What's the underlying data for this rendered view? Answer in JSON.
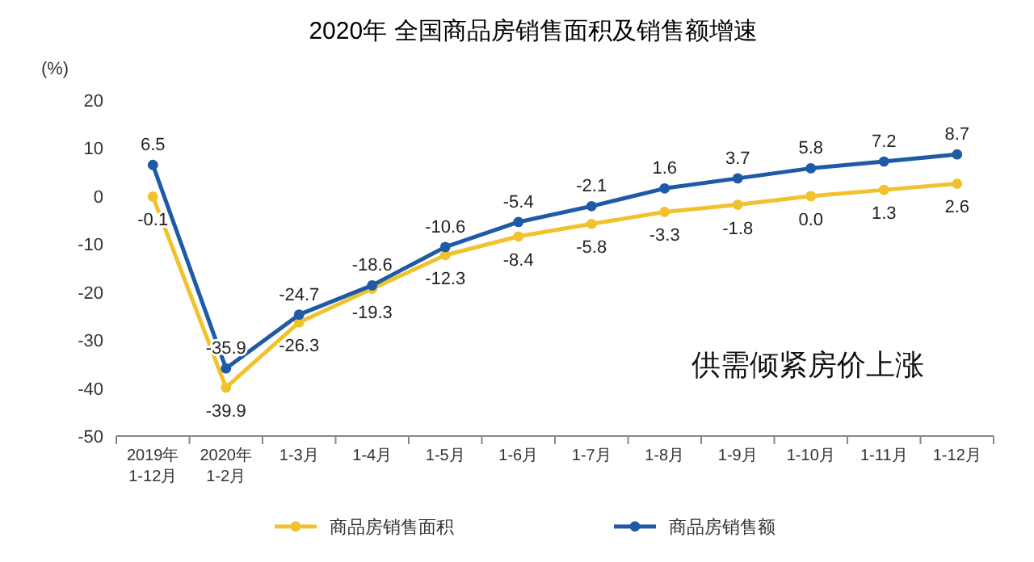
{
  "chart_data": {
    "type": "line",
    "title": "2020年  全国商品房销售面积及销售额增速",
    "ylabel": "(%)",
    "categories": [
      "2019年 1-12月",
      "2020年 1-2月",
      "1-3月",
      "1-4月",
      "1-5月",
      "1-6月",
      "1-7月",
      "1-8月",
      "1-9月",
      "1-10月",
      "1-11月",
      "1-12月"
    ],
    "series": [
      {
        "name": "商品房销售面积",
        "color": "#f2c12e",
        "values": [
          -0.1,
          -39.9,
          -26.3,
          -19.3,
          -12.3,
          -8.4,
          -5.8,
          -3.3,
          -1.8,
          0.0,
          1.3,
          2.6
        ],
        "value_labels": [
          "-0.1",
          "-39.9",
          "-26.3",
          "-19.3",
          "-12.3",
          "-8.4",
          "-5.8",
          "-3.3",
          "-1.8",
          "0.0",
          "1.3",
          "2.6"
        ]
      },
      {
        "name": "商品房销售额",
        "color": "#1f5aa6",
        "values": [
          6.5,
          -35.9,
          -24.7,
          -18.6,
          -10.6,
          -5.4,
          -2.1,
          1.6,
          3.7,
          5.8,
          7.2,
          8.7
        ],
        "value_labels": [
          "6.5",
          "-35.9",
          "-24.7",
          "-18.6",
          "-10.6",
          "-5.4",
          "-2.1",
          "1.6",
          "3.7",
          "5.8",
          "7.2",
          "8.7"
        ]
      }
    ],
    "ylim": [
      -50,
      20
    ],
    "yticks": [
      -50,
      -40,
      -30,
      -20,
      -10,
      0,
      10,
      20
    ],
    "marker": "circle",
    "legend": "bottom",
    "grid": false,
    "annotations": [
      "供需倾紧房价上涨"
    ]
  }
}
